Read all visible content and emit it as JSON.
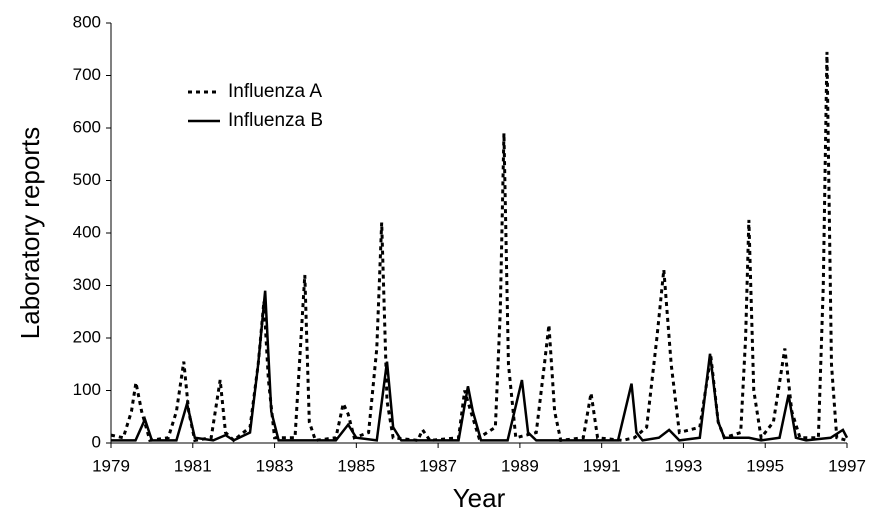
{
  "chart_data": {
    "type": "line",
    "x_label": "Year",
    "y_label": "Laboratory reports",
    "xlim": [
      1979,
      1997
    ],
    "xticks": [
      1979,
      1981,
      1983,
      1985,
      1987,
      1989,
      1991,
      1993,
      1995,
      1997
    ],
    "ylim": [
      0,
      800
    ],
    "yticks": [
      0,
      100,
      200,
      300,
      400,
      500,
      600,
      700,
      800
    ],
    "grid": false,
    "legend": "upper-left",
    "series": [
      {
        "name": "Influenza A",
        "color": "#000000",
        "line_style": "dotted",
        "x": [
          1979,
          1979.3,
          1979.5,
          1979.61,
          1979.75,
          1979.95,
          1980.4,
          1980.6,
          1980.78,
          1980.9,
          1981.05,
          1981.45,
          1981.67,
          1981.8,
          1982.0,
          1982.4,
          1982.6,
          1982.74,
          1982.85,
          1983.0,
          1983.5,
          1983.74,
          1983.85,
          1984.0,
          1984.5,
          1984.68,
          1984.8,
          1984.95,
          1985.3,
          1985.5,
          1985.62,
          1985.75,
          1985.9,
          1986.5,
          1986.62,
          1986.8,
          1987.5,
          1987.65,
          1987.8,
          1988.0,
          1988.4,
          1988.52,
          1988.61,
          1988.72,
          1988.9,
          1989.4,
          1989.6,
          1989.71,
          1989.85,
          1990.0,
          1990.55,
          1990.74,
          1990.9,
          1991.5,
          1991.8,
          1992.1,
          1992.35,
          1992.52,
          1992.7,
          1992.9,
          1993.4,
          1993.67,
          1993.85,
          1994.0,
          1994.4,
          1994.52,
          1994.6,
          1994.72,
          1994.9,
          1995.2,
          1995.48,
          1995.65,
          1995.85,
          1996.3,
          1996.42,
          1996.51,
          1996.62,
          1996.75,
          1997
        ],
        "values": [
          15,
          10,
          60,
          115,
          60,
          5,
          10,
          60,
          155,
          60,
          5,
          10,
          120,
          20,
          5,
          30,
          150,
          270,
          120,
          10,
          10,
          320,
          40,
          5,
          10,
          75,
          55,
          10,
          20,
          180,
          420,
          80,
          10,
          5,
          25,
          5,
          10,
          100,
          60,
          10,
          30,
          250,
          590,
          150,
          10,
          20,
          150,
          225,
          60,
          5,
          10,
          95,
          10,
          5,
          10,
          30,
          200,
          330,
          150,
          20,
          30,
          165,
          40,
          10,
          20,
          200,
          425,
          100,
          10,
          40,
          180,
          60,
          10,
          10,
          300,
          745,
          150,
          10,
          5
        ]
      },
      {
        "name": "Influenza B",
        "color": "#000000",
        "line_style": "solid",
        "x": [
          1979,
          1979.6,
          1979.83,
          1980.0,
          1980.6,
          1980.86,
          1981.05,
          1981.5,
          1981.8,
          1982.0,
          1982.4,
          1982.6,
          1982.77,
          1982.92,
          1983.1,
          1984.5,
          1984.8,
          1985.0,
          1985.5,
          1985.75,
          1985.9,
          1986.1,
          1987.5,
          1987.73,
          1987.85,
          1988.05,
          1988.7,
          1989.05,
          1989.2,
          1989.4,
          1991.4,
          1991.73,
          1991.85,
          1992.0,
          1992.4,
          1992.65,
          1992.9,
          1993.4,
          1993.65,
          1993.85,
          1994.0,
          1994.6,
          1994.9,
          1995.35,
          1995.57,
          1995.75,
          1996.0,
          1996.6,
          1996.9,
          1997
        ],
        "values": [
          5,
          5,
          45,
          5,
          5,
          75,
          10,
          5,
          15,
          5,
          20,
          150,
          290,
          60,
          5,
          5,
          35,
          10,
          5,
          155,
          30,
          5,
          5,
          108,
          60,
          5,
          5,
          120,
          20,
          5,
          5,
          113,
          20,
          5,
          10,
          25,
          5,
          10,
          170,
          40,
          10,
          10,
          5,
          10,
          92,
          10,
          5,
          10,
          25,
          10
        ]
      }
    ]
  }
}
